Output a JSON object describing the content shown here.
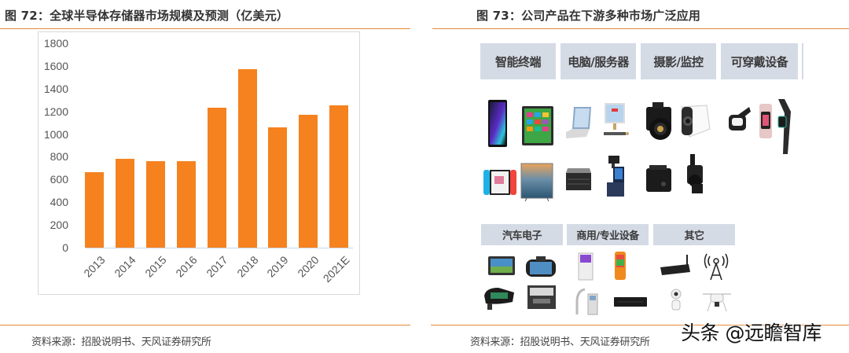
{
  "left_figure": {
    "title": "图 72：全球半导体存储器市场规模及预测（亿美元）",
    "source": "资料来源：招股说明书、天风证券研究所"
  },
  "right_figure": {
    "title": "图 73：公司产品在下游多种市场广泛应用",
    "source": "资料来源：招股说明书、天风证券研究所",
    "categories_top": [
      "智能终端",
      "电脑/服务器",
      "摄影/监控",
      "可穿戴设备"
    ],
    "categories_bottom": [
      "汽车电子",
      "商用/专业设备",
      "其它"
    ],
    "products": {
      "smart_terminal": [
        "smartphone",
        "tablet",
        "game-console",
        "smart-tv"
      ],
      "pc_server": [
        "laptop",
        "desktop-pc",
        "server",
        "pos-terminal"
      ],
      "camera_surveillance": [
        "dslr-camera",
        "security-camera",
        "dashcam-box",
        "camcorder"
      ],
      "wearable": [
        "vr-headset",
        "smartwatch",
        "fitness-band"
      ],
      "automotive": [
        "car-navigator",
        "driving-recorder",
        "rearview-mirror",
        "car-dashboard"
      ],
      "commercial": [
        "kiosk-printer",
        "handheld-pos",
        "medical-device",
        "network-recorder"
      ],
      "other": [
        "router",
        "signal-tower",
        "robot",
        "drone"
      ]
    }
  },
  "watermark": "头条 @远瞻智库",
  "colors": {
    "bar": "#f5821f",
    "rule": "#e58a3a",
    "category_bg": "#d5dbe5"
  },
  "chart_data": {
    "type": "bar",
    "title": "全球半导体存储器市场规模及预测（亿美元）",
    "xlabel": "",
    "ylabel": "亿美元",
    "categories": [
      "2013",
      "2014",
      "2015",
      "2016",
      "2017",
      "2018",
      "2019",
      "2020",
      "2021E"
    ],
    "values": [
      667,
      785,
      762,
      762,
      1233,
      1574,
      1062,
      1170,
      1256
    ],
    "ylim": [
      0,
      1800
    ],
    "yticks": [
      "0",
      "200",
      "400",
      "600",
      "800",
      "1000",
      "1200",
      "1400",
      "1600",
      "1800"
    ],
    "grid": false,
    "legend": null
  }
}
